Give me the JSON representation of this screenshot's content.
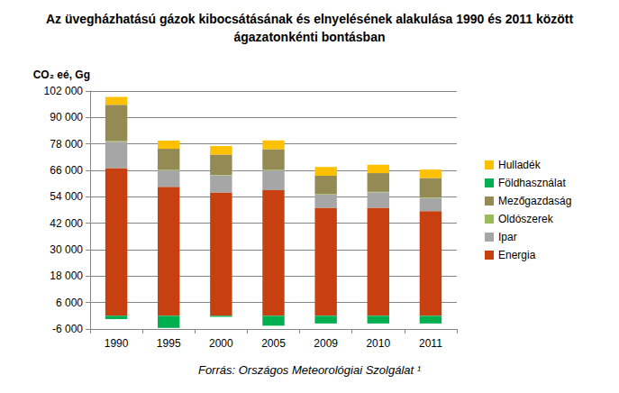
{
  "chart_data": {
    "type": "bar",
    "title": "Az üvegházhatású gázok kibocsátásának és elnyelésének alakulása 1990 és 2011 között\nágazatonkénti bontásban",
    "y_label": "CO₂ eé, Gg",
    "source": "Forrás: Országos Meteorológiai Szolgálat ¹",
    "categories": [
      "1990",
      "1995",
      "2000",
      "2005",
      "2009",
      "2010",
      "2011"
    ],
    "series": [
      {
        "name": "Energia",
        "color": "#c8400f",
        "values": [
          67000,
          58500,
          56000,
          57000,
          49000,
          49000,
          47500
        ]
      },
      {
        "name": "Ipar",
        "color": "#a6a6a6",
        "values": [
          12000,
          7500,
          7700,
          9000,
          6000,
          7000,
          6000
        ]
      },
      {
        "name": "Oldószerek",
        "color": "#9bbb59",
        "values": [
          300,
          300,
          300,
          300,
          250,
          250,
          250
        ]
      },
      {
        "name": "Mezőgazdaság",
        "color": "#948a54",
        "values": [
          16500,
          9500,
          9200,
          9300,
          8300,
          8500,
          8800
        ]
      },
      {
        "name": "Földhasználat",
        "color": "#00b050",
        "values": [
          -1500,
          -5500,
          -500,
          -4500,
          -3500,
          -3500,
          -3500
        ]
      },
      {
        "name": "Hulladék",
        "color": "#ffc000",
        "values": [
          3500,
          3700,
          3800,
          4000,
          4000,
          3800,
          3800
        ]
      }
    ],
    "ylim": [
      -6000,
      102000
    ],
    "yticks": [
      {
        "value": -6000,
        "label": "-6 000"
      },
      {
        "value": 6000,
        "label": "6 000"
      },
      {
        "value": 18000,
        "label": "18 000"
      },
      {
        "value": 30000,
        "label": "30 000"
      },
      {
        "value": 42000,
        "label": "42 000"
      },
      {
        "value": 54000,
        "label": "54 000"
      },
      {
        "value": 66000,
        "label": "66 000"
      },
      {
        "value": 78000,
        "label": "78 000"
      },
      {
        "value": 90000,
        "label": "90 000"
      },
      {
        "value": 102000,
        "label": "102 000"
      }
    ],
    "grid": true,
    "legend": "right",
    "stacked": true
  }
}
